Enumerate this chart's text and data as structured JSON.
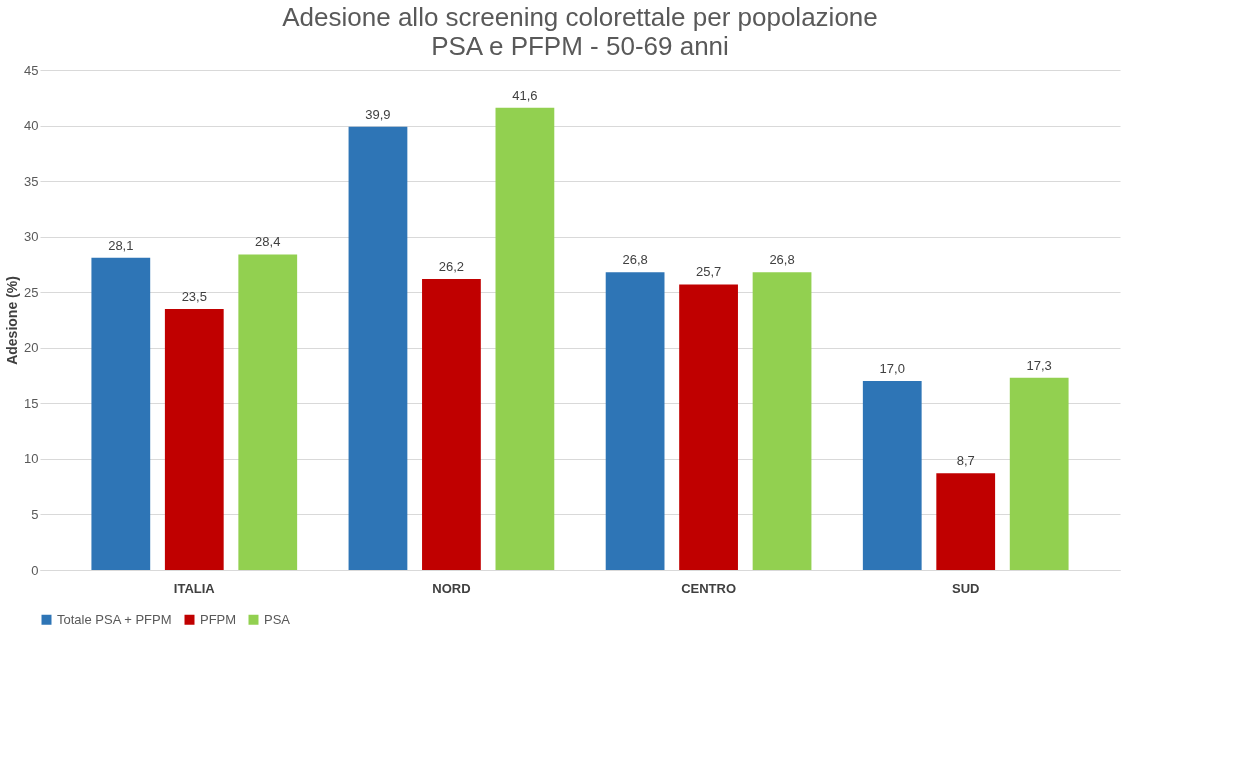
{
  "chart_data": {
    "type": "bar",
    "title": "Adesione allo screening colorettale per popolazione",
    "subtitle": "PSA e PFPM - 50-69 anni",
    "ylabel": "Adesione (%)",
    "categories": [
      "ITALIA",
      "NORD",
      "CENTRO",
      "SUD"
    ],
    "series": [
      {
        "name": "Totale PSA + PFPM",
        "color": "#2e75b6",
        "values": [
          28.1,
          39.9,
          26.8,
          17.0
        ],
        "value_labels": [
          "28,1",
          "39,9",
          "26,8",
          "17,0"
        ]
      },
      {
        "name": "PFPM",
        "color": "#c00000",
        "values": [
          23.5,
          26.2,
          25.7,
          8.7
        ],
        "value_labels": [
          "23,5",
          "26,2",
          "25,7",
          "8,7"
        ]
      },
      {
        "name": "PSA",
        "color": "#92d050",
        "values": [
          28.4,
          41.6,
          26.8,
          17.3
        ],
        "value_labels": [
          "28,4",
          "41,6",
          "26,8",
          "17,3"
        ]
      }
    ],
    "ylim": [
      0,
      45
    ],
    "yticks": [
      0,
      5,
      10,
      15,
      20,
      25,
      30,
      35,
      40,
      45
    ],
    "grid": "y",
    "legend": "bottom"
  }
}
